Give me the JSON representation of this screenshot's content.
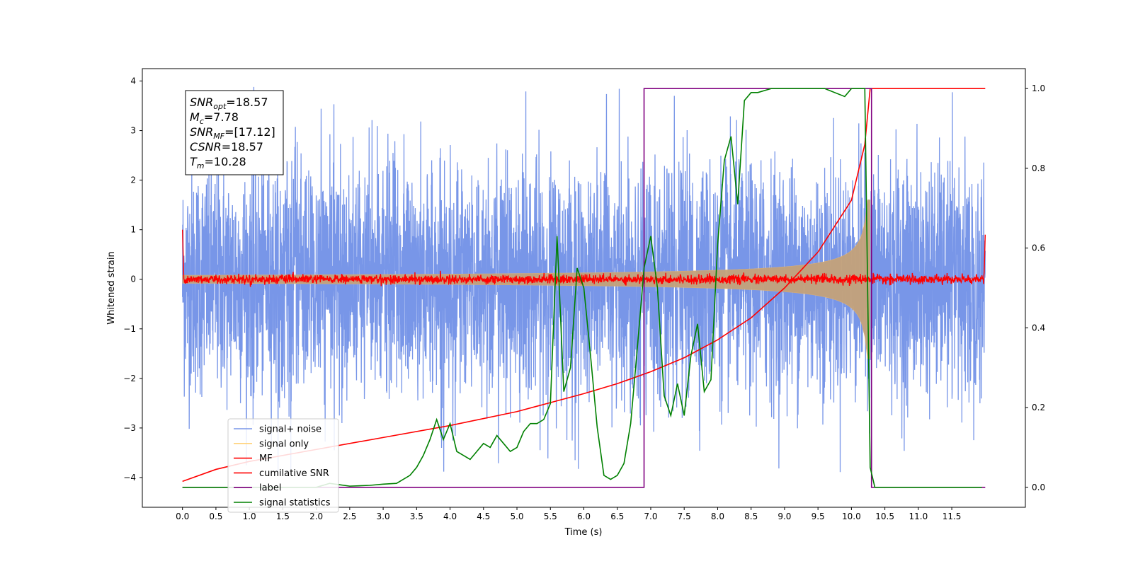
{
  "chart_data": {
    "type": "line",
    "xlabel": "Time (s)",
    "ylabel": "Whitened strain",
    "xlim": [
      -0.6,
      12.6
    ],
    "ylim": [
      -4.6,
      4.25
    ],
    "y2lim": [
      -0.05,
      1.05
    ],
    "x_ticks": [
      "0.0",
      "0.5",
      "1.0",
      "1.5",
      "2.0",
      "2.5",
      "3.0",
      "3.5",
      "4.0",
      "4.5",
      "5.0",
      "5.5",
      "6.0",
      "6.5",
      "7.0",
      "7.5",
      "8.0",
      "8.5",
      "9.0",
      "9.5",
      "10.0",
      "10.5",
      "11.0",
      "11.5"
    ],
    "x_tick_values": [
      0,
      0.5,
      1,
      1.5,
      2,
      2.5,
      3,
      3.5,
      4,
      4.5,
      5,
      5.5,
      6,
      6.5,
      7,
      7.5,
      8,
      8.5,
      9,
      9.5,
      10,
      10.5,
      11,
      11.5
    ],
    "y_ticks": [
      "−4",
      "−3",
      "−2",
      "−1",
      "0",
      "1",
      "2",
      "3",
      "4"
    ],
    "y_tick_values": [
      -4,
      -3,
      -2,
      -1,
      0,
      1,
      2,
      3,
      4
    ],
    "y2_ticks": [
      "0.0",
      "0.2",
      "0.4",
      "0.6",
      "0.8",
      "1.0"
    ],
    "y2_tick_values": [
      0,
      0.2,
      0.4,
      0.6,
      0.8,
      1.0
    ],
    "grid": false,
    "legend_position": "lower-left",
    "annotation": {
      "lines": [
        {
          "base": "SNR",
          "sub": "opt",
          "rest": "=18.57"
        },
        {
          "base": "M",
          "sub": "c",
          "rest": "=7.78"
        },
        {
          "base": "SNR",
          "sub": "MF",
          "rest": "=[17.12]"
        },
        {
          "base": "CSNR",
          "sub": "",
          "rest": "=18.57"
        },
        {
          "base": "T",
          "sub": "m",
          "rest": "=10.28"
        }
      ]
    },
    "series": [
      {
        "name": "signal+ noise",
        "color": "#7896e8",
        "axis": "left",
        "description_values": {
          "x_range": [
            0,
            12
          ],
          "amplitude_typical": 2.2,
          "amplitude_peak": 4.0
        }
      },
      {
        "name": "signal only",
        "color": "#c4a27a",
        "axis": "left",
        "chirp": {
          "x_start": 0,
          "x_merger": 10.28,
          "amp_start": 0.08,
          "amp_merger": 1.6
        }
      },
      {
        "name": "MF",
        "color": "#ff0000",
        "axis": "left",
        "noise_amplitude": 0.1,
        "x_range": [
          0,
          12
        ]
      },
      {
        "name": "cumilative SNR",
        "color": "#ff0000",
        "axis": "right",
        "x": [
          0.0,
          0.5,
          1.0,
          2.0,
          3.0,
          4.0,
          5.0,
          6.0,
          6.5,
          7.0,
          7.5,
          8.0,
          8.5,
          9.0,
          9.5,
          10.0,
          10.2,
          10.28,
          12.0
        ],
        "y": [
          0.015,
          0.045,
          0.065,
          0.095,
          0.125,
          0.155,
          0.19,
          0.235,
          0.26,
          0.29,
          0.325,
          0.37,
          0.425,
          0.5,
          0.59,
          0.72,
          0.86,
          1.0,
          1.0
        ]
      },
      {
        "name": "label",
        "color": "#800080",
        "axis": "right",
        "x": [
          0,
          6.9,
          6.9,
          10.3,
          10.3,
          12
        ],
        "y": [
          0,
          0,
          1,
          1,
          0,
          0
        ]
      },
      {
        "name": "signal statistics",
        "color": "#008000",
        "axis": "right",
        "x": [
          0.0,
          0.5,
          1.0,
          1.5,
          2.0,
          2.2,
          2.5,
          2.8,
          3.0,
          3.2,
          3.4,
          3.5,
          3.6,
          3.7,
          3.8,
          3.9,
          4.0,
          4.1,
          4.2,
          4.3,
          4.4,
          4.5,
          4.6,
          4.7,
          4.8,
          4.9,
          5.0,
          5.1,
          5.2,
          5.3,
          5.4,
          5.5,
          5.6,
          5.7,
          5.8,
          5.9,
          6.0,
          6.1,
          6.2,
          6.3,
          6.4,
          6.5,
          6.6,
          6.7,
          6.8,
          6.9,
          7.0,
          7.1,
          7.2,
          7.3,
          7.4,
          7.5,
          7.6,
          7.7,
          7.8,
          7.9,
          8.0,
          8.1,
          8.2,
          8.3,
          8.4,
          8.5,
          8.6,
          8.8,
          9.0,
          9.3,
          9.6,
          9.9,
          10.0,
          10.2,
          10.28,
          10.35,
          10.5,
          11.0,
          11.5,
          11.95
        ],
        "y": [
          0.0,
          0.0,
          0.0,
          0.0,
          0.0,
          0.01,
          0.003,
          0.005,
          0.008,
          0.01,
          0.03,
          0.05,
          0.08,
          0.12,
          0.17,
          0.12,
          0.16,
          0.09,
          0.08,
          0.07,
          0.09,
          0.11,
          0.1,
          0.13,
          0.11,
          0.09,
          0.1,
          0.14,
          0.16,
          0.16,
          0.17,
          0.21,
          0.63,
          0.24,
          0.3,
          0.55,
          0.5,
          0.33,
          0.15,
          0.03,
          0.02,
          0.03,
          0.06,
          0.16,
          0.35,
          0.55,
          0.63,
          0.5,
          0.23,
          0.18,
          0.26,
          0.18,
          0.33,
          0.41,
          0.24,
          0.27,
          0.61,
          0.82,
          0.88,
          0.71,
          0.97,
          0.99,
          0.99,
          1.0,
          1.0,
          1.0,
          1.0,
          0.98,
          1.0,
          1.0,
          0.05,
          0.0,
          0.0,
          0.0,
          0.0,
          0.0
        ]
      }
    ]
  }
}
